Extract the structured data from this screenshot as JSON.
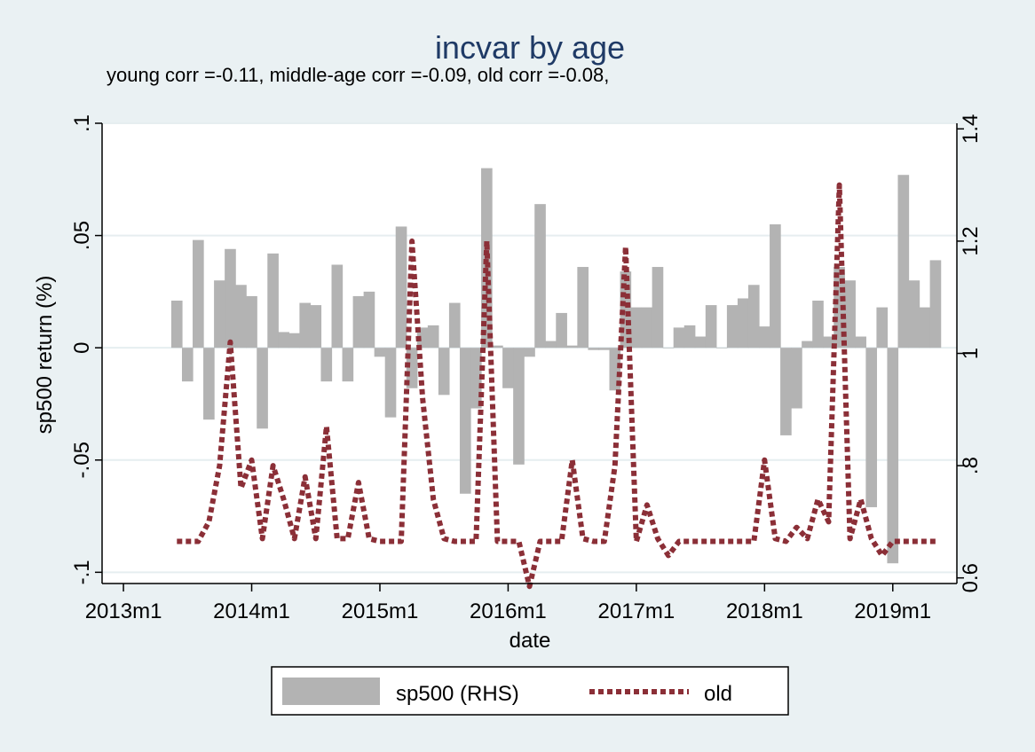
{
  "chart_data": {
    "type": "bar+line",
    "title": "incvar by age",
    "subtitle": "young corr =-0.11, middle-age corr =-0.09, old corr =-0.08,",
    "xlabel": "date",
    "ylabel_left": "sp500 return (%)",
    "ylabel_right": "",
    "x_start": "2013m6",
    "x_end": "2019m5",
    "xlim": [
      "2012m11",
      "2019m7"
    ],
    "x_ticks": [
      "2013m1",
      "2014m1",
      "2015m1",
      "2016m1",
      "2017m1",
      "2018m1",
      "2019m1"
    ],
    "y_left_lim": [
      -0.105,
      0.1
    ],
    "y_left_ticks": [
      "-.1",
      "-.05",
      "0",
      ".05",
      ".1"
    ],
    "y_right_lim": [
      0.59,
      1.41
    ],
    "y_right_ticks": [
      "0.6",
      ".8",
      "1",
      "1.2",
      "1.4"
    ],
    "grid": true,
    "legend_position": "bottom",
    "colors": {
      "bars": "#b3b3b3",
      "old_line": "#8b2f37",
      "title": "#1f3a66",
      "background": "#eaf1f3",
      "plot_bg": "#ffffff"
    },
    "series": [
      {
        "name": "sp500 (RHS)",
        "axis": "left",
        "type": "bar",
        "values": [
          0.021,
          -0.015,
          0.048,
          -0.032,
          0.03,
          0.044,
          0.028,
          0.023,
          -0.036,
          0.042,
          0.007,
          0.0065,
          0.02,
          0.019,
          -0.015,
          0.037,
          -0.015,
          0.023,
          0.025,
          -0.004,
          -0.031,
          0.054,
          -0.018,
          0.009,
          0.01,
          -0.021,
          0.02,
          -0.065,
          -0.027,
          0.08,
          0.001,
          -0.018,
          -0.052,
          -0.004,
          0.064,
          0.003,
          0.0155,
          0.001,
          0.036,
          -0.001,
          -0.001,
          -0.019,
          0.034,
          0.018,
          0.018,
          0.036,
          0.0,
          0.009,
          0.01,
          0.005,
          0.019,
          0.0,
          0.019,
          0.022,
          0.028,
          0.0095,
          0.055,
          -0.039,
          -0.027,
          0.003,
          0.021,
          0.005,
          0.036,
          0.03,
          0.005,
          -0.071,
          0.018,
          -0.096,
          0.077,
          0.03,
          0.018,
          0.039
        ]
      },
      {
        "name": "old",
        "axis": "right",
        "type": "line",
        "style": "dotted",
        "values": [
          0.665,
          0.665,
          0.665,
          0.7,
          0.8,
          1.02,
          0.76,
          0.81,
          0.67,
          0.8,
          0.74,
          0.67,
          0.78,
          0.67,
          0.87,
          0.67,
          0.67,
          0.77,
          0.67,
          0.665,
          0.665,
          0.665,
          1.2,
          0.92,
          0.74,
          0.67,
          0.665,
          0.665,
          0.665,
          1.2,
          0.665,
          0.665,
          0.665,
          0.585,
          0.665,
          0.665,
          0.665,
          0.81,
          0.67,
          0.665,
          0.665,
          0.8,
          1.19,
          0.665,
          0.73,
          0.67,
          0.64,
          0.665,
          0.665,
          0.665,
          0.665,
          0.665,
          0.665,
          0.665,
          0.665,
          0.81,
          0.67,
          0.665,
          0.69,
          0.67,
          0.74,
          0.7,
          1.3,
          0.67,
          0.74,
          0.67,
          0.64,
          0.665,
          0.665,
          0.665,
          0.665,
          0.665
        ]
      }
    ]
  }
}
